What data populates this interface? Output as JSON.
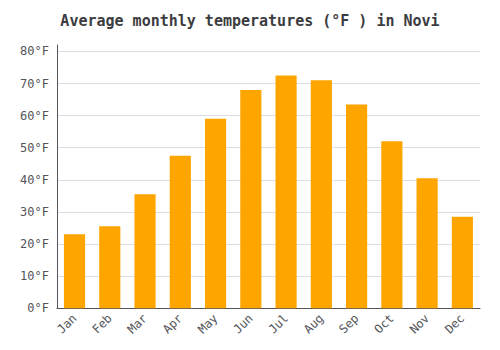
{
  "chart_data": {
    "type": "bar",
    "title": "Average monthly temperatures (°F ) in Novi",
    "categories": [
      "Jan",
      "Feb",
      "Mar",
      "Apr",
      "May",
      "Jun",
      "Jul",
      "Aug",
      "Sep",
      "Oct",
      "Nov",
      "Dec"
    ],
    "values": [
      23,
      25.5,
      35.5,
      47.5,
      59,
      68,
      72.5,
      71,
      63.5,
      52,
      40.5,
      28.5
    ],
    "color": "#FFA500",
    "ylim": [
      0,
      82
    ],
    "yticks": [
      {
        "value": 0,
        "label": "0°F"
      },
      {
        "value": 10,
        "label": "10°F"
      },
      {
        "value": 20,
        "label": "20°F"
      },
      {
        "value": 30,
        "label": "30°F"
      },
      {
        "value": 40,
        "label": "40°F"
      },
      {
        "value": 50,
        "label": "50°F"
      },
      {
        "value": 60,
        "label": "60°F"
      },
      {
        "value": 70,
        "label": "70°F"
      },
      {
        "value": 80,
        "label": "80°F"
      }
    ],
    "grid": true
  }
}
